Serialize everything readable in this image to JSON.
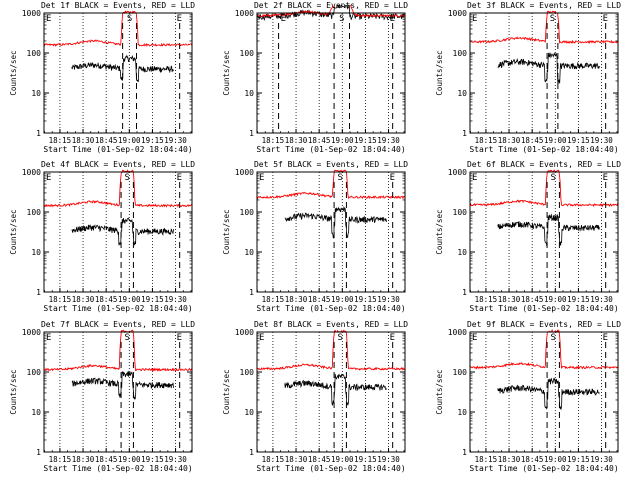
{
  "chart_data": {
    "type": "line",
    "layout": "3x3 grid of panels",
    "xlabel": "Start Time (01-Sep-02 18:04:40)",
    "ylabel": "Counts/sec",
    "x_ticks": [
      "18:15",
      "18:30",
      "18:45",
      "19:00",
      "19:15",
      "19:30"
    ],
    "x_tick_minutes": [
      10.33,
      25.33,
      40.33,
      55.33,
      70.33,
      85.33
    ],
    "xlim_minutes": [
      0,
      96
    ],
    "y_ticks": [
      "1",
      "10",
      "100",
      "1000"
    ],
    "yscale": "log",
    "ylim": [
      1,
      1000
    ],
    "series_colors": {
      "events": "#000000",
      "lld": "#ff0000"
    },
    "marker_labels": {
      "start": "E",
      "source": "S",
      "end": "E"
    },
    "panels": [
      {
        "title": "Det 1f BLACK = Events, RED = LLD",
        "event_interval_minutes": [
          0,
          88
        ],
        "source_interval_minutes": [
          51,
          60
        ],
        "events": {
          "base": 40,
          "start": 18,
          "end": 84,
          "dip": 0.55
        },
        "lld": {
          "base": 160,
          "start": 0,
          "end": 96,
          "peak": 1050
        }
      },
      {
        "title": "Det 2f BLACK = Events, RED = LLD",
        "event_interval_minutes": [
          14,
          88
        ],
        "source_interval_minutes": [
          50,
          60
        ],
        "events": {
          "base": 820,
          "start": 0,
          "end": 96,
          "dip": 1.0
        },
        "lld": {
          "base": 860,
          "start": 0,
          "end": 96,
          "peak": 7000,
          "gaussian": true
        }
      },
      {
        "title": "Det 3f BLACK = Events, RED = LLD",
        "event_interval_minutes": [
          0,
          88
        ],
        "source_interval_minutes": [
          50,
          57
        ],
        "events": {
          "base": 48,
          "start": 18,
          "end": 84,
          "dip": 0.4
        },
        "lld": {
          "base": 190,
          "start": 0,
          "end": 96,
          "peak": 1050
        }
      },
      {
        "title": "Det 4f BLACK = Events, RED = LLD",
        "event_interval_minutes": [
          0,
          88
        ],
        "source_interval_minutes": [
          50,
          58
        ],
        "events": {
          "base": 33,
          "start": 18,
          "end": 84,
          "dip": 0.5
        },
        "lld": {
          "base": 145,
          "start": 0,
          "end": 96,
          "peak": 1050
        }
      },
      {
        "title": "Det 5f BLACK = Events, RED = LLD",
        "event_interval_minutes": [
          0,
          88
        ],
        "source_interval_minutes": [
          50,
          58
        ],
        "events": {
          "base": 65,
          "start": 18,
          "end": 84,
          "dip": 0.4
        },
        "lld": {
          "base": 235,
          "start": 0,
          "end": 96,
          "peak": 1050
        }
      },
      {
        "title": "Det 6f BLACK = Events, RED = LLD",
        "event_interval_minutes": [
          0,
          88
        ],
        "source_interval_minutes": [
          50,
          58
        ],
        "events": {
          "base": 40,
          "start": 18,
          "end": 84,
          "dip": 0.4
        },
        "lld": {
          "base": 150,
          "start": 0,
          "end": 96,
          "peak": 1050
        }
      },
      {
        "title": "Det 7f BLACK = Events, RED = LLD",
        "event_interval_minutes": [
          0,
          88
        ],
        "source_interval_minutes": [
          50,
          58
        ],
        "events": {
          "base": 48,
          "start": 18,
          "end": 84,
          "dip": 0.5
        },
        "lld": {
          "base": 115,
          "start": 0,
          "end": 96,
          "peak": 1050
        }
      },
      {
        "title": "Det 8f BLACK = Events, RED = LLD",
        "event_interval_minutes": [
          0,
          88
        ],
        "source_interval_minutes": [
          50,
          58
        ],
        "events": {
          "base": 42,
          "start": 18,
          "end": 84,
          "dip": 0.4
        },
        "lld": {
          "base": 120,
          "start": 0,
          "end": 96,
          "peak": 1050
        }
      },
      {
        "title": "Det 9f BLACK = Events, RED = LLD",
        "event_interval_minutes": [
          0,
          88
        ],
        "source_interval_minutes": [
          50,
          58
        ],
        "events": {
          "base": 32,
          "start": 18,
          "end": 84,
          "dip": 0.4
        },
        "lld": {
          "base": 130,
          "start": 0,
          "end": 96,
          "peak": 1050
        }
      }
    ]
  }
}
